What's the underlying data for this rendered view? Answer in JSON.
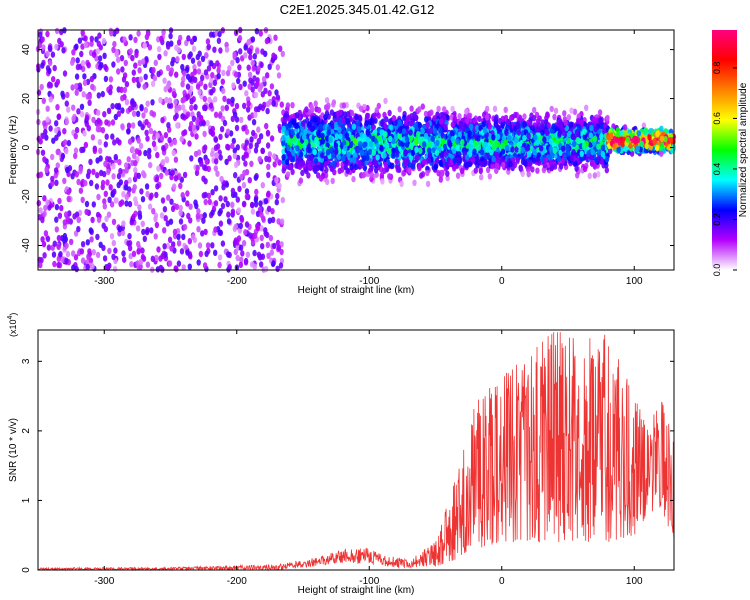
{
  "figure_title": "C2E1.2025.345.01.42.G12",
  "chart_data": [
    {
      "type": "heatmap",
      "title": "C2E1.2025.345.01.42.G12",
      "xlabel": "Height of straight line (km)",
      "ylabel": "Frequency (Hz)",
      "xlim": [
        -350,
        130
      ],
      "ylim": [
        -50,
        48
      ],
      "xticks": [
        -300,
        -200,
        -100,
        0,
        100
      ],
      "yticks": [
        -40,
        -20,
        0,
        20,
        40
      ],
      "colorbar": {
        "label": "Normalized spectral amplitude",
        "range": [
          0.0,
          0.95
        ],
        "ticks": [
          0.0,
          0.2,
          0.4,
          0.6,
          0.8
        ],
        "colormap": [
          "#ffffff",
          "#b400ff",
          "#0000ff",
          "#00ffff",
          "#00ff00",
          "#ffff00",
          "#ff8000",
          "#ff0000",
          "#ff0080"
        ]
      },
      "structure": [
        {
          "x_range": [
            -350,
            -165
          ],
          "description": "scattered low-amplitude noise",
          "freq_spread": [
            -50,
            48
          ],
          "amplitude": 0.15
        },
        {
          "x_range": [
            -165,
            -40
          ],
          "description": "band centered near 0 Hz",
          "freq_center": 2,
          "freq_halfwidth": 12,
          "amplitude": 0.35
        },
        {
          "x_range": [
            -40,
            80
          ],
          "description": "band centered near 0 Hz",
          "freq_center": 2,
          "freq_halfwidth": 10,
          "amplitude": 0.35
        },
        {
          "x_range": [
            80,
            130
          ],
          "description": "narrow strong band",
          "freq_center": 3,
          "freq_halfwidth": 4,
          "amplitude": 0.85
        }
      ],
      "grid": false
    },
    {
      "type": "line",
      "xlabel": "Height of straight line (km)",
      "ylabel": "SNR (10 * v/v)",
      "y_scale_label": "(x10",
      "y_scale_exponent": "4",
      "xlim": [
        -350,
        130
      ],
      "ylim": [
        0,
        3.45
      ],
      "xticks": [
        -300,
        -200,
        -100,
        0,
        100
      ],
      "yticks": [
        0,
        1,
        2,
        3
      ],
      "color": "#ee3333",
      "envelope": {
        "x": [
          -350,
          -250,
          -170,
          -140,
          -120,
          -100,
          -90,
          -70,
          -50,
          -35,
          -20,
          0,
          20,
          40,
          60,
          80,
          100,
          110,
          120,
          130
        ],
        "min": [
          0.0,
          0.0,
          0.0,
          0.05,
          0.1,
          0.08,
          0.05,
          0.02,
          0.05,
          0.15,
          0.3,
          0.4,
          0.4,
          0.4,
          0.4,
          0.4,
          0.5,
          0.8,
          0.9,
          0.4
        ],
        "max": [
          0.03,
          0.04,
          0.08,
          0.18,
          0.3,
          0.32,
          0.22,
          0.15,
          0.4,
          1.3,
          2.4,
          2.8,
          3.1,
          3.45,
          3.3,
          3.4,
          2.5,
          2.1,
          2.45,
          2.0
        ]
      },
      "grid": false
    }
  ]
}
